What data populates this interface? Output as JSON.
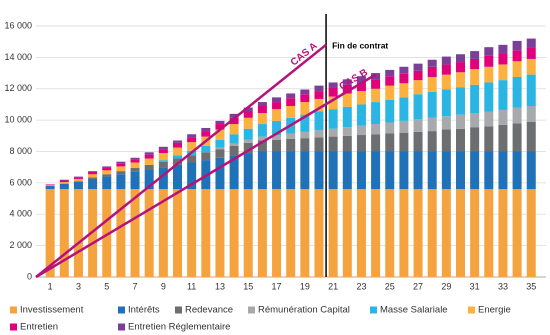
{
  "chart_data": {
    "type": "bar",
    "stacked": true,
    "categories": [
      1,
      null,
      3,
      null,
      5,
      null,
      7,
      null,
      9,
      null,
      11,
      null,
      13,
      null,
      15,
      null,
      17,
      null,
      19,
      null,
      21,
      null,
      23,
      null,
      25,
      null,
      27,
      null,
      29,
      null,
      31,
      null,
      33,
      null,
      35
    ],
    "series": [
      {
        "name": "Investissement",
        "color": "#f5a33e",
        "values": [
          5600,
          5600,
          5600,
          5600,
          5600,
          5600,
          5600,
          5600,
          5600,
          5600,
          5600,
          5600,
          5600,
          5600,
          5600,
          5600,
          5600,
          5600,
          5600,
          5600,
          5600,
          5600,
          5600,
          5600,
          5600,
          5600,
          5600,
          5600,
          5600,
          5600,
          5600,
          5600,
          5600,
          5600,
          5600
        ]
      },
      {
        "name": "Intérêts",
        "color": "#1f72b8",
        "values": [
          200,
          350,
          500,
          650,
          800,
          950,
          1100,
          1250,
          1400,
          1550,
          1700,
          1850,
          2000,
          2150,
          2300,
          2400,
          2400,
          2400,
          2400,
          2400,
          2400,
          2400,
          2400,
          2400,
          2400,
          2400,
          2400,
          2400,
          2400,
          2400,
          2400,
          2400,
          2400,
          2400,
          2400
        ]
      },
      {
        "name": "Redevance",
        "color": "#6d6e70",
        "values": [
          0,
          0,
          0,
          100,
          150,
          200,
          250,
          300,
          350,
          400,
          450,
          500,
          550,
          600,
          650,
          700,
          750,
          800,
          850,
          900,
          950,
          1000,
          1050,
          1100,
          1150,
          1200,
          1250,
          1300,
          1400,
          1450,
          1550,
          1600,
          1700,
          1800,
          1900
        ]
      },
      {
        "name": "Rémunération Capital",
        "color": "#a7a9ac",
        "values": [
          0,
          0,
          0,
          0,
          0,
          0,
          0,
          0,
          0,
          0,
          0,
          0,
          100,
          150,
          200,
          250,
          300,
          350,
          400,
          450,
          500,
          550,
          600,
          650,
          700,
          750,
          800,
          850,
          850,
          900,
          900,
          950,
          950,
          1000,
          1000
        ]
      },
      {
        "name": "Masse Salariale",
        "color": "#2bb5e3",
        "values": [
          0,
          0,
          0,
          0,
          0,
          0,
          0,
          0,
          100,
          200,
          300,
          400,
          500,
          600,
          700,
          800,
          900,
          1000,
          1100,
          1200,
          1250,
          1300,
          1350,
          1400,
          1450,
          1500,
          1600,
          1650,
          1700,
          1750,
          1800,
          1850,
          1900,
          1950,
          2000
        ]
      },
      {
        "name": "Energie",
        "color": "#fbb03f",
        "values": [
          50,
          100,
          150,
          200,
          250,
          300,
          350,
          400,
          450,
          500,
          550,
          600,
          650,
          650,
          700,
          700,
          750,
          750,
          800,
          800,
          800,
          850,
          850,
          850,
          900,
          900,
          900,
          950,
          950,
          950,
          1000,
          1000,
          1000,
          1000,
          1000
        ]
      },
      {
        "name": "Entretien",
        "color": "#e2007a",
        "values": [
          50,
          100,
          100,
          150,
          150,
          200,
          200,
          250,
          250,
          300,
          300,
          350,
          350,
          400,
          400,
          450,
          450,
          500,
          500,
          500,
          550,
          550,
          550,
          600,
          600,
          600,
          600,
          650,
          650,
          650,
          650,
          700,
          700,
          700,
          700
        ]
      },
      {
        "name": "Entretien Réglementaire",
        "color": "#7b3f98",
        "values": [
          0,
          50,
          50,
          50,
          100,
          100,
          100,
          150,
          150,
          150,
          200,
          200,
          200,
          250,
          250,
          250,
          300,
          300,
          300,
          350,
          350,
          350,
          400,
          400,
          400,
          450,
          450,
          450,
          500,
          500,
          500,
          550,
          550,
          600,
          600
        ]
      }
    ],
    "lines": [
      {
        "name": "CAS A",
        "color": "#b5127a",
        "x": [
          0,
          20.5
        ],
        "y": [
          0,
          14800
        ]
      },
      {
        "name": "CAS B",
        "color": "#b5127a",
        "x": [
          0,
          24
        ],
        "y": [
          0,
          12900
        ]
      }
    ],
    "vline": {
      "x": 20.5,
      "label": "Fin de contrat",
      "color": "#000000"
    },
    "ylim": [
      0,
      16000
    ],
    "yticks": [
      0,
      {
        "value": 2000,
        "label": "2 000"
      },
      {
        "value": 4000,
        "label": "4 000"
      },
      {
        "value": 6000,
        "label": "6 000"
      },
      {
        "value": 8000,
        "label": "8 000"
      },
      {
        "value": 10000,
        "label": "10 000"
      },
      {
        "value": 12000,
        "label": "12 000"
      },
      {
        "value": 14000,
        "label": "14 000"
      },
      {
        "value": 16000,
        "label": "16 000"
      }
    ],
    "grid": true
  }
}
